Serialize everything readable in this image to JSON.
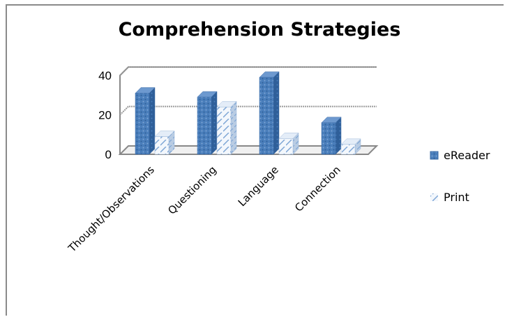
{
  "chart_data": {
    "type": "bar",
    "title": "Comprehension Strategies",
    "categories": [
      "Thought/Observations",
      "Questioning",
      "Language",
      "Connection"
    ],
    "series": [
      {
        "name": "eReader",
        "values": [
          31,
          29,
          39,
          16
        ]
      },
      {
        "name": "Print",
        "values": [
          9,
          24,
          8,
          5
        ]
      }
    ],
    "yticks": [
      0,
      20,
      40
    ],
    "ylim": [
      0,
      40
    ],
    "grid": true,
    "legend": "right",
    "colors": {
      "eReader": "#4a7ebb",
      "Print": "#dbe8f7"
    }
  }
}
